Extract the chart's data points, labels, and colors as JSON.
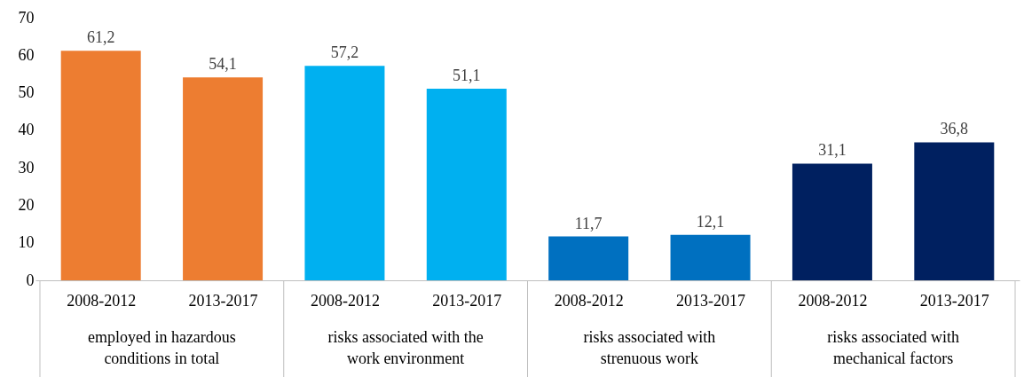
{
  "chart_data": {
    "type": "bar",
    "categories": [
      "2008-2012",
      "2013-2017",
      "2008-2012",
      "2013-2017",
      "2008-2012",
      "2013-2017",
      "2008-2012",
      "2013-2017"
    ],
    "values": [
      61.2,
      54.1,
      57.2,
      51.1,
      11.7,
      12.1,
      31.1,
      36.8
    ],
    "value_labels": [
      "61,2",
      "54,1",
      "57,2",
      "51,1",
      "11,7",
      "12,1",
      "31,1",
      "36,8"
    ],
    "colors": [
      "#ed7d31",
      "#ed7d31",
      "#00b0f0",
      "#00b0f0",
      "#0070c0",
      "#0070c0",
      "#002060",
      "#002060"
    ],
    "annotations": [
      "employed in hazardous conditions in total",
      "risks associated with the work environment",
      "risks associated with strenuous work",
      "risks associated with mechanical factors"
    ],
    "ylim": [
      0,
      70
    ],
    "yticks": [
      0,
      10,
      20,
      30,
      40,
      50,
      60,
      70
    ],
    "grid": false
  }
}
